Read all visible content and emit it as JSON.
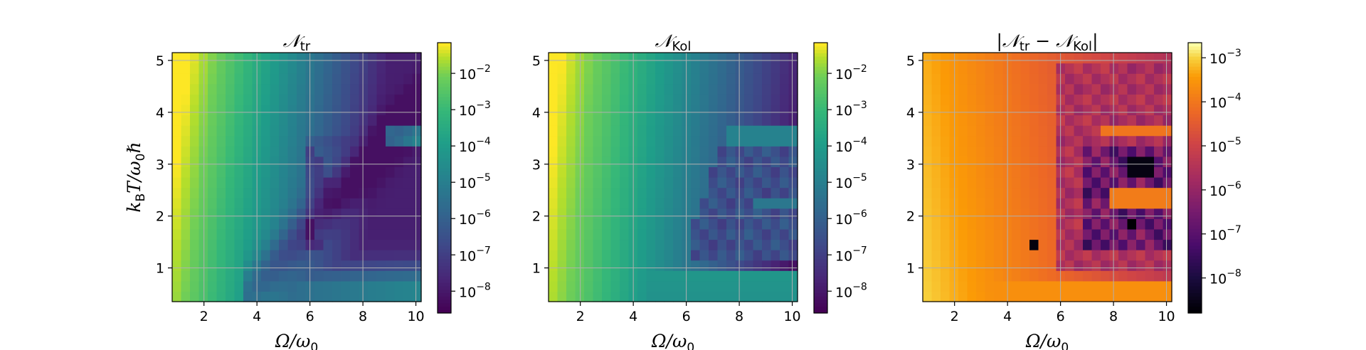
{
  "chart_data": [
    {
      "type": "heatmap",
      "title": "𝒩tr",
      "title_main": "𝒩",
      "title_sub": "tr",
      "xlabel_main": "Ω/ω",
      "xlabel_sub": "0",
      "ylabel_parts": [
        "k",
        "B",
        "T/ω",
        "0",
        "ℏ"
      ],
      "x_range": [
        0.8,
        10.2
      ],
      "y_range": [
        0.35,
        5.15
      ],
      "x_ticks": [
        2,
        4,
        6,
        8,
        10
      ],
      "y_ticks": [
        1,
        2,
        3,
        4,
        5
      ],
      "grid": true,
      "colormap": "viridis",
      "scale": "log",
      "colorbar_range": [
        2.5e-09,
        0.07
      ],
      "colorbar_ticks": [
        {
          "value": 1e-08,
          "mantissa": "10",
          "exp": "−8"
        },
        {
          "value": 1e-07,
          "mantissa": "10",
          "exp": "−7"
        },
        {
          "value": 1e-06,
          "mantissa": "10",
          "exp": "−6"
        },
        {
          "value": 1e-05,
          "mantissa": "10",
          "exp": "−5"
        },
        {
          "value": 0.0001,
          "mantissa": "10",
          "exp": "−4"
        },
        {
          "value": 0.001,
          "mantissa": "10",
          "exp": "−3"
        },
        {
          "value": 0.01,
          "mantissa": "10",
          "exp": "−2"
        }
      ]
    },
    {
      "type": "heatmap",
      "title": "𝒩Kol",
      "title_main": "𝒩",
      "title_sub": "Kol",
      "xlabel_main": "Ω/ω",
      "xlabel_sub": "0",
      "x_range": [
        0.8,
        10.2
      ],
      "y_range": [
        0.35,
        5.15
      ],
      "x_ticks": [
        2,
        4,
        6,
        8,
        10
      ],
      "y_ticks": [
        1,
        2,
        3,
        4,
        5
      ],
      "grid": true,
      "colormap": "viridis",
      "scale": "log",
      "colorbar_range": [
        2.5e-09,
        0.07
      ],
      "colorbar_ticks": [
        {
          "value": 1e-08,
          "mantissa": "10",
          "exp": "−8"
        },
        {
          "value": 1e-07,
          "mantissa": "10",
          "exp": "−7"
        },
        {
          "value": 1e-06,
          "mantissa": "10",
          "exp": "−6"
        },
        {
          "value": 1e-05,
          "mantissa": "10",
          "exp": "−5"
        },
        {
          "value": 0.0001,
          "mantissa": "10",
          "exp": "−4"
        },
        {
          "value": 0.001,
          "mantissa": "10",
          "exp": "−3"
        },
        {
          "value": 0.01,
          "mantissa": "10",
          "exp": "−2"
        }
      ]
    },
    {
      "type": "heatmap",
      "title": "|𝒩tr − 𝒩Kol|",
      "title_parts": [
        "|𝒩",
        "tr",
        " − 𝒩",
        "Kol",
        "|"
      ],
      "xlabel_main": "Ω/ω",
      "xlabel_sub": "0",
      "x_range": [
        0.8,
        10.2
      ],
      "y_range": [
        0.35,
        5.15
      ],
      "x_ticks": [
        2,
        4,
        6,
        8,
        10
      ],
      "y_ticks": [
        1,
        2,
        3,
        4,
        5
      ],
      "grid": true,
      "colormap": "inferno",
      "scale": "log",
      "colorbar_range": [
        1.6e-09,
        0.0022
      ],
      "colorbar_ticks": [
        {
          "value": 1e-08,
          "mantissa": "10",
          "exp": "−8"
        },
        {
          "value": 1e-07,
          "mantissa": "10",
          "exp": "−7"
        },
        {
          "value": 1e-06,
          "mantissa": "10",
          "exp": "−6"
        },
        {
          "value": 1e-05,
          "mantissa": "10",
          "exp": "−5"
        },
        {
          "value": 0.0001,
          "mantissa": "10",
          "exp": "−4"
        },
        {
          "value": 0.001,
          "mantissa": "10",
          "exp": "−3"
        }
      ]
    }
  ]
}
